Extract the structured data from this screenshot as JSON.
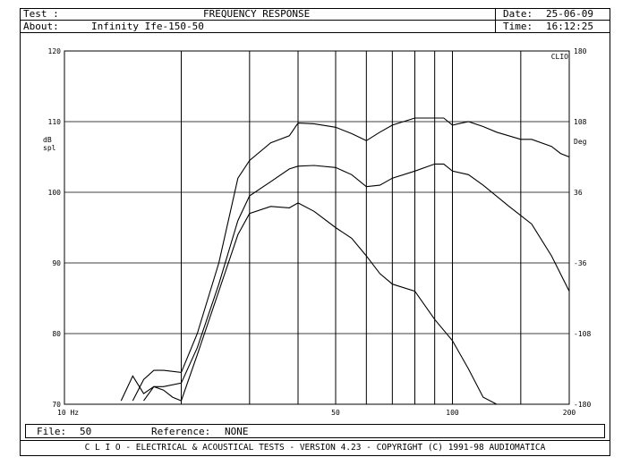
{
  "header": {
    "test_label": "Test :",
    "title": "FREQUENCY RESPONSE",
    "about_label": "About:",
    "about_value": "Infinity Ife-150-50",
    "date_label": "Date:",
    "date_value": "25-06-09",
    "time_label": "Time:",
    "time_value": "16:12:25"
  },
  "footer": {
    "file_label": "File:",
    "file_value": "50",
    "reference_label": "Reference:",
    "reference_value": "NONE",
    "copyright": "C L I O  -  ELECTRICAL & ACOUSTICAL TESTS  -  VERSION 4.23  -  COPYRIGHT (C) 1991-98 AUDIOMATICA"
  },
  "chart_data": {
    "type": "line",
    "xscale": "log",
    "xlim": [
      10,
      200
    ],
    "ylim": [
      70,
      120
    ],
    "y2lim": [
      -180,
      180
    ],
    "grid": true,
    "y_unit_label": "dB spl",
    "y2_unit_label": "Deg",
    "corner_label": "CLIO",
    "x_tick_labels": [
      {
        "x": 10,
        "label": "10   Hz"
      },
      {
        "x": 50,
        "label": "50"
      },
      {
        "x": 100,
        "label": "100"
      },
      {
        "x": 200,
        "label": "200"
      }
    ],
    "x_gridlines": [
      20,
      30,
      40,
      50,
      60,
      70,
      80,
      90,
      100,
      150
    ],
    "y_tick_labels": [
      "70",
      "80",
      "90",
      "100",
      "110",
      "120"
    ],
    "y_ticks": [
      70,
      80,
      90,
      100,
      110,
      120
    ],
    "y2_tick_labels": [
      "-180",
      "-108",
      "-36",
      "36",
      "108",
      "180"
    ],
    "series": [
      {
        "x": [
          15,
          16,
          17,
          18,
          20,
          22,
          25,
          28,
          30,
          34,
          38,
          40,
          44,
          50,
          55,
          60,
          65,
          70,
          80,
          90,
          95,
          100,
          110,
          120,
          130,
          150,
          160,
          180,
          190,
          200
        ],
        "y": [
          70.5,
          73.5,
          74.8,
          74.8,
          74.5,
          80,
          90,
          102,
          104.5,
          107,
          108,
          109.8,
          109.7,
          109.2,
          108.3,
          107.3,
          108.5,
          109.5,
          110.5,
          110.5,
          110.5,
          109.5,
          110,
          109.3,
          108.5,
          107.5,
          107.5,
          106.5,
          105.5,
          105
        ]
      },
      {
        "x": [
          14,
          15,
          16,
          17,
          18,
          20,
          22,
          25,
          28,
          30,
          34,
          38,
          40,
          44,
          50,
          55,
          60,
          65,
          70,
          80,
          90,
          95,
          100,
          110,
          120,
          140,
          160,
          180,
          200
        ],
        "y": [
          70.5,
          74,
          71.5,
          72.5,
          72.5,
          73,
          78,
          87,
          96,
          99.5,
          101.5,
          103.3,
          103.7,
          103.8,
          103.5,
          102.5,
          100.8,
          101,
          102,
          103,
          104,
          104,
          103,
          102.5,
          101,
          98,
          95.5,
          91,
          86
        ]
      },
      {
        "x": [
          16,
          17,
          18,
          19,
          20,
          22,
          25,
          28,
          30,
          34,
          38,
          40,
          44,
          50,
          55,
          60,
          65,
          70,
          80,
          90,
          100,
          110,
          120,
          130
        ],
        "y": [
          70.5,
          72.5,
          72,
          71,
          70.5,
          77,
          86,
          94,
          97,
          98,
          97.8,
          98.5,
          97.3,
          95,
          93.5,
          91,
          88.5,
          87,
          86,
          82,
          79,
          75,
          71,
          70
        ]
      }
    ]
  }
}
